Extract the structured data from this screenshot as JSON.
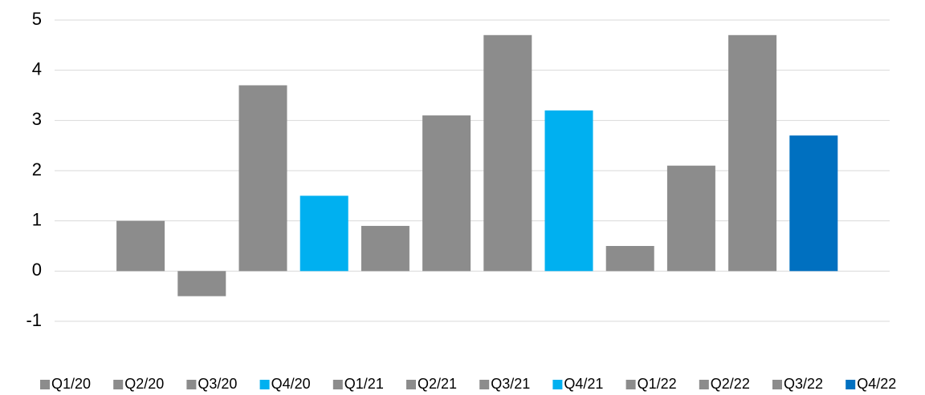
{
  "chart_data": {
    "type": "bar",
    "categories": [
      "Q1/20",
      "Q2/20",
      "Q3/20",
      "Q4/20",
      "Q1/21",
      "Q2/21",
      "Q3/21",
      "Q4/21",
      "Q1/22",
      "Q2/22",
      "Q3/22",
      "Q4/22"
    ],
    "values": [
      1,
      -0.5,
      3.7,
      1.5,
      0.9,
      3.1,
      4.7,
      3.2,
      0.5,
      2.1,
      4.7,
      2.7
    ],
    "colors": [
      "#8c8c8c",
      "#8c8c8c",
      "#8c8c8c",
      "#00b0f0",
      "#8c8c8c",
      "#8c8c8c",
      "#8c8c8c",
      "#00b0f0",
      "#8c8c8c",
      "#8c8c8c",
      "#8c8c8c",
      "#0070c0"
    ],
    "ylim": [
      -1,
      5
    ],
    "yticks": [
      -1,
      0,
      1,
      2,
      3,
      4,
      5
    ],
    "grid": true,
    "legend": "bottom"
  }
}
